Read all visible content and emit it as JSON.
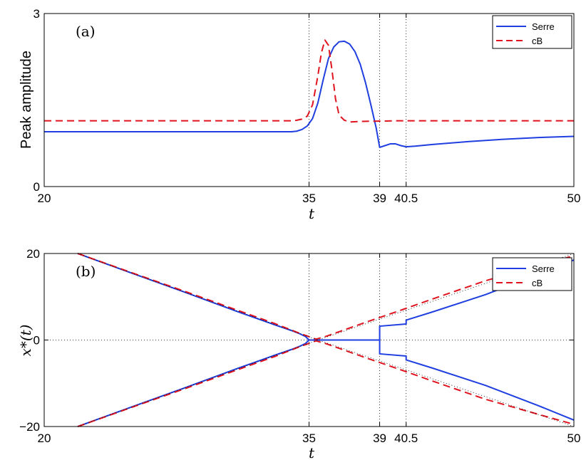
{
  "colors": {
    "serre": "#1f3fe0",
    "cb": "#e0141e",
    "grid": "#000000"
  },
  "chart_data": [
    {
      "type": "line",
      "panel_label": "(a)",
      "xlabel": "t",
      "ylabel": "Peak amplitude",
      "xlim": [
        20,
        50
      ],
      "ylim": [
        0,
        3
      ],
      "xticks": [
        20,
        35,
        39,
        40.5,
        50
      ],
      "xtick_labels": [
        "20",
        "35",
        "39",
        "40.5",
        "50"
      ],
      "yticks": [
        0,
        3
      ],
      "ytick_labels": [
        "0",
        "3"
      ],
      "vlines": [
        35,
        39,
        40.5
      ],
      "hlines": [],
      "legend": {
        "position": "top-right",
        "entries": [
          "Serre",
          "cB"
        ]
      },
      "series": [
        {
          "name": "Serre",
          "style": "solid",
          "x": [
            20,
            34,
            34.3,
            34.6,
            34.9,
            35.2,
            35.5,
            35.8,
            36.1,
            36.4,
            36.7,
            37.0,
            37.3,
            37.6,
            37.9,
            38.2,
            38.5,
            38.8,
            39.0,
            39.3,
            39.6,
            39.9,
            40.2,
            40.5,
            41,
            42,
            44,
            46,
            48,
            50
          ],
          "y": [
            0.95,
            0.95,
            0.96,
            0.99,
            1.05,
            1.18,
            1.45,
            1.85,
            2.22,
            2.42,
            2.51,
            2.52,
            2.47,
            2.34,
            2.12,
            1.8,
            1.42,
            1.02,
            0.68,
            0.71,
            0.74,
            0.74,
            0.71,
            0.69,
            0.7,
            0.73,
            0.78,
            0.82,
            0.85,
            0.87
          ]
        },
        {
          "name": "cB",
          "style": "dashed",
          "x": [
            20,
            34,
            34.3,
            34.6,
            34.9,
            35.2,
            35.5,
            35.7,
            35.9,
            36.1,
            36.3,
            36.5,
            36.7,
            37.0,
            37.3,
            38,
            40,
            45,
            50
          ],
          "y": [
            1.14,
            1.14,
            1.15,
            1.17,
            1.22,
            1.42,
            1.92,
            2.32,
            2.54,
            2.45,
            2.02,
            1.52,
            1.24,
            1.15,
            1.12,
            1.13,
            1.14,
            1.14,
            1.14
          ]
        }
      ]
    },
    {
      "type": "line",
      "panel_label": "(b)",
      "xlabel": "t",
      "ylabel": "x*(t)",
      "xlim": [
        20,
        50
      ],
      "ylim": [
        -20,
        20
      ],
      "xticks": [
        20,
        35,
        39,
        40.5,
        50
      ],
      "xtick_labels": [
        "20",
        "35",
        "39",
        "40.5",
        "50"
      ],
      "yticks": [
        -20,
        0,
        20
      ],
      "ytick_labels": [
        "−20",
        "0",
        "20"
      ],
      "vlines": [
        35,
        39,
        40.5
      ],
      "hlines": [
        0
      ],
      "legend": {
        "position": "top-right",
        "entries": [
          "Serre",
          "cB"
        ]
      },
      "series": [
        {
          "name": "Serre",
          "style": "solid",
          "x": [
            21.9,
            25,
            28,
            31,
            33,
            34,
            34.5,
            34.8,
            35.0,
            35.2,
            35.6,
            39.0,
            39.0,
            40.5,
            40.5,
            42,
            45,
            48,
            50
          ],
          "y": [
            20,
            15.4,
            11.0,
            6.5,
            3.6,
            2.2,
            1.4,
            0.8,
            0.0,
            0.0,
            0.0,
            0.0,
            3.2,
            3.7,
            4.6,
            6.5,
            10.5,
            15.2,
            18.5
          ]
        },
        {
          "name": "Serre",
          "style": "solid",
          "x": [
            21.9,
            25,
            28,
            31,
            33,
            34,
            34.5,
            34.8,
            35.0,
            35.2,
            35.6,
            39.0,
            39.0,
            40.5,
            40.5,
            42,
            45,
            48,
            50
          ],
          "y": [
            -20,
            -15.4,
            -11.0,
            -6.5,
            -3.6,
            -2.2,
            -1.4,
            -0.8,
            0.0,
            0.0,
            0.0,
            0.0,
            -3.2,
            -3.7,
            -4.6,
            -6.5,
            -10.5,
            -15.2,
            -18.5
          ]
        },
        {
          "name": "cB",
          "style": "dashed",
          "x": [
            21.9,
            25,
            28,
            31,
            33,
            34.5,
            35.4,
            36,
            38,
            40,
            42,
            45,
            48,
            50
          ],
          "y": [
            20,
            15.5,
            11.2,
            6.8,
            3.9,
            1.5,
            0.2,
            0.9,
            3.8,
            6.6,
            9.5,
            13.7,
            17.2,
            19.5
          ]
        },
        {
          "name": "cB",
          "style": "dashed",
          "x": [
            21.9,
            25,
            28,
            31,
            33,
            34.5,
            35.4,
            36,
            38,
            40,
            42,
            45,
            48,
            50
          ],
          "y": [
            -20,
            -15.5,
            -11.2,
            -6.8,
            -3.9,
            -1.5,
            -0.2,
            -0.9,
            -3.8,
            -6.6,
            -9.5,
            -13.7,
            -17.2,
            -19.5
          ]
        },
        {
          "name": "",
          "style": "dotted",
          "x": [
            21.9,
            35.5,
            50
          ],
          "y": [
            20,
            0,
            20
          ]
        },
        {
          "name": "",
          "style": "dotted",
          "x": [
            21.9,
            35.5,
            50
          ],
          "y": [
            -20,
            0,
            -20
          ]
        }
      ]
    }
  ]
}
